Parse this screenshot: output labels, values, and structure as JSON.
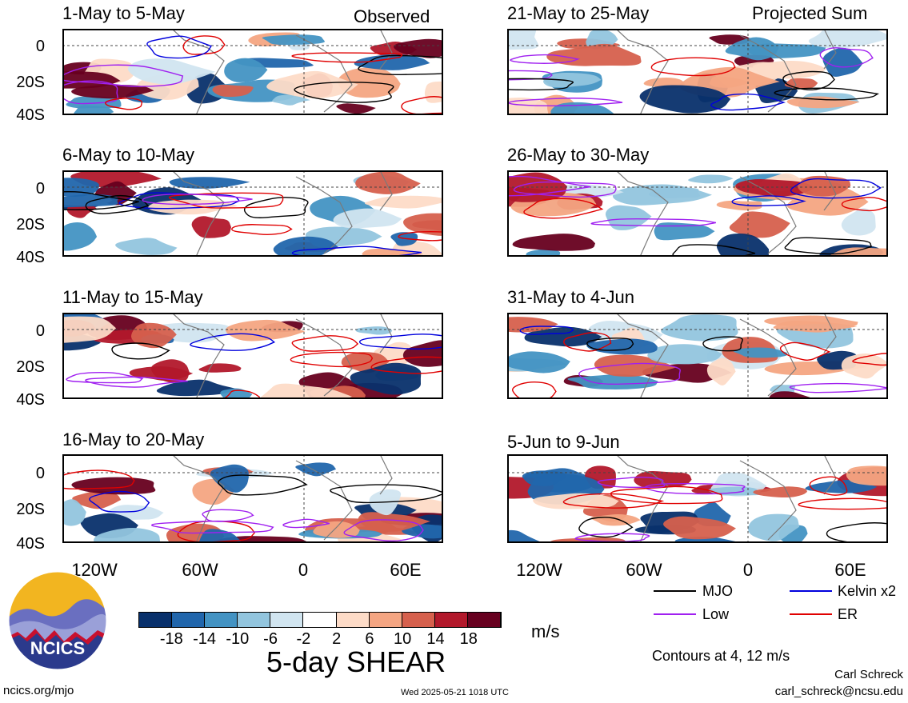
{
  "header": {
    "observed_label": "Observed",
    "projected_label": "Projected Sum"
  },
  "panels": [
    {
      "title": "1-May to 5-May",
      "column": "left"
    },
    {
      "title": "6-May to 10-May",
      "column": "left"
    },
    {
      "title": "11-May to 15-May",
      "column": "left"
    },
    {
      "title": "16-May to 20-May",
      "column": "left"
    },
    {
      "title": "21-May to 25-May",
      "column": "right"
    },
    {
      "title": "26-May to 30-May",
      "column": "right"
    },
    {
      "title": "31-May to 4-Jun",
      "column": "right"
    },
    {
      "title": "5-Jun to 9-Jun",
      "column": "right"
    }
  ],
  "axes": {
    "y_ticks": [
      "0",
      "20S",
      "40S"
    ],
    "x_ticks": [
      "120W",
      "60W",
      "0",
      "60E"
    ]
  },
  "colorbar": {
    "labels": [
      "-18",
      "-14",
      "-10",
      "-6",
      "-2",
      "2",
      "6",
      "10",
      "14",
      "18"
    ],
    "colors": [
      "#08306b",
      "#2166ac",
      "#4393c3",
      "#92c5de",
      "#d1e5f0",
      "#ffffff",
      "#fddbc7",
      "#f4a582",
      "#d6604d",
      "#b2182b",
      "#67001f"
    ],
    "units": "m/s",
    "title": "5-day SHEAR"
  },
  "legend": {
    "items": [
      {
        "label": "MJO",
        "color": "#000000"
      },
      {
        "label": "Kelvin x2",
        "color": "#0000dd"
      },
      {
        "label": "Low",
        "color": "#a020f0"
      },
      {
        "label": "ER",
        "color": "#e00000"
      }
    ],
    "note": "Contours at 4, 12 m/s"
  },
  "logo": {
    "text": "NCICS"
  },
  "footer": {
    "left": "ncics.org/mjo",
    "center": "Wed 2025-05-21 1018 UTC",
    "author": "Carl Schreck",
    "email": "carl_schreck@ncsu.edu"
  }
}
